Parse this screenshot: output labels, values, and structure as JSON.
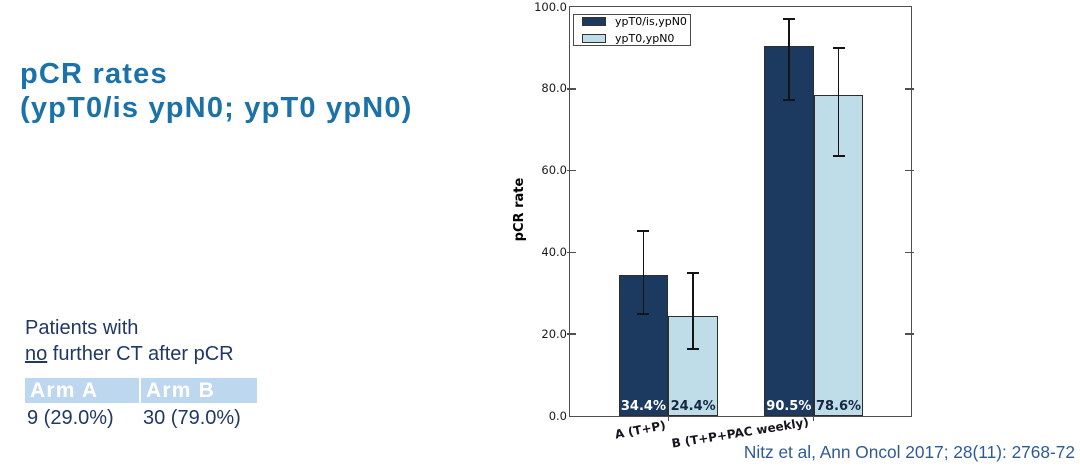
{
  "slide": {
    "title_line1": "pCR rates",
    "title_line2": "(ypT0/is ypN0; ypT0 ypN0)",
    "citation": "Nitz et al, Ann Oncol 2017; 28(11): 2768-72"
  },
  "left_panel": {
    "note_line1": "Patients with",
    "note_underlined": "no",
    "note_line2_rest": " further CT after pCR",
    "table": {
      "headers": [
        "Arm A",
        "Arm B"
      ],
      "values": [
        "9 (29.0%)",
        "30 (79.0%)"
      ]
    }
  },
  "chart_data": {
    "type": "bar",
    "title": "",
    "xlabel": "",
    "ylabel": "pCR rate",
    "ylim": [
      0,
      100
    ],
    "yticks": [
      0,
      20,
      40,
      60,
      80,
      100
    ],
    "ytick_labels": [
      "0.0",
      "20.0",
      "40.0",
      "60.0",
      "80.0",
      "100.0"
    ],
    "categories": [
      "A (T+P)",
      "B (T+P+PAC weekly)"
    ],
    "series": [
      {
        "name": "ypT0/is,ypN0",
        "color": "#1C3A5F",
        "values": [
          34.4,
          90.5
        ],
        "error_low": [
          24.9,
          77.3
        ],
        "error_high": [
          45.3,
          97.0
        ],
        "value_labels": [
          "34.4%",
          "90.5%"
        ],
        "label_color": "#ffffff"
      },
      {
        "name": "ypT0,ypN0",
        "color": "#BEDDE9",
        "values": [
          24.4,
          78.6
        ],
        "error_low": [
          16.3,
          63.6
        ],
        "error_high": [
          34.9,
          89.9
        ],
        "value_labels": [
          "24.4%",
          "78.6%"
        ],
        "label_color": "#16273f"
      }
    ],
    "legend_position": "upper left",
    "grid": false
  },
  "colors": {
    "title_blue": "#1A72A8",
    "navy_text": "#1F3864",
    "table_header_bg": "#BDD7EE",
    "citation_blue": "#2F5B94",
    "bar_dark": "#1C3A5F",
    "bar_light": "#BEDDE9"
  }
}
